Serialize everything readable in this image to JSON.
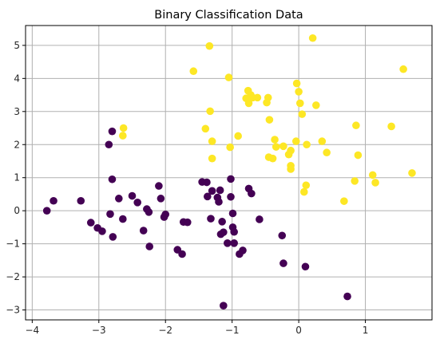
{
  "chart_data": {
    "type": "scatter",
    "title": "Binary Classification Data",
    "xlabel": "",
    "ylabel": "",
    "xlim": [
      -4.1,
      2.0
    ],
    "ylim": [
      -3.3,
      5.6
    ],
    "xticks": [
      -4,
      -3,
      -2,
      -1,
      0,
      1
    ],
    "yticks": [
      -3,
      -2,
      -1,
      0,
      1,
      2,
      3,
      4,
      5
    ],
    "xtick_labels": [
      "−4",
      "−3",
      "−2",
      "−1",
      "0",
      "1"
    ],
    "ytick_labels": [
      "−3",
      "−2",
      "−1",
      "0",
      "1",
      "2",
      "3",
      "4",
      "5"
    ],
    "grid": true,
    "legend": null,
    "colors": {
      "class_0": "#440154",
      "class_1": "#fde725"
    },
    "series": [
      {
        "class": 0,
        "color": "#440154",
        "points": [
          [
            -3.78,
            0.0
          ],
          [
            -3.68,
            0.3
          ],
          [
            -3.27,
            0.3
          ],
          [
            -3.12,
            -0.36
          ],
          [
            -3.02,
            -0.52
          ],
          [
            -2.95,
            -0.62
          ],
          [
            -2.85,
            2.0
          ],
          [
            -2.83,
            -0.1
          ],
          [
            -2.8,
            2.4
          ],
          [
            -2.8,
            0.95
          ],
          [
            -2.79,
            -0.79
          ],
          [
            -2.7,
            0.37
          ],
          [
            -2.64,
            -0.25
          ],
          [
            -2.5,
            0.45
          ],
          [
            -2.42,
            0.25
          ],
          [
            -2.33,
            -0.6
          ],
          [
            -2.28,
            0.05
          ],
          [
            -2.25,
            -0.04
          ],
          [
            -2.24,
            -1.08
          ],
          [
            -2.1,
            0.75
          ],
          [
            -2.07,
            0.37
          ],
          [
            -2.02,
            -0.19
          ],
          [
            -2.0,
            -0.11
          ],
          [
            -1.82,
            -1.18
          ],
          [
            -1.75,
            -1.31
          ],
          [
            -1.73,
            -0.34
          ],
          [
            -1.67,
            -0.35
          ],
          [
            -1.45,
            0.87
          ],
          [
            -1.38,
            0.86
          ],
          [
            -1.37,
            0.43
          ],
          [
            -1.32,
            -0.24
          ],
          [
            -1.3,
            0.6
          ],
          [
            -1.22,
            0.4
          ],
          [
            -1.2,
            0.27
          ],
          [
            -1.18,
            0.62
          ],
          [
            -1.17,
            -0.71
          ],
          [
            -1.15,
            -0.33
          ],
          [
            -1.13,
            -0.65
          ],
          [
            -1.13,
            -2.87
          ],
          [
            -1.07,
            -0.98
          ],
          [
            -1.02,
            0.96
          ],
          [
            -1.02,
            0.42
          ],
          [
            -0.99,
            -0.08
          ],
          [
            -0.99,
            -0.5
          ],
          [
            -0.97,
            -0.64
          ],
          [
            -0.97,
            -0.98
          ],
          [
            -0.89,
            -1.31
          ],
          [
            -0.84,
            -1.2
          ],
          [
            -0.75,
            0.67
          ],
          [
            -0.71,
            0.52
          ],
          [
            -0.59,
            -0.26
          ],
          [
            -0.25,
            -0.75
          ],
          [
            -0.23,
            -1.59
          ],
          [
            0.1,
            -1.69
          ],
          [
            0.73,
            -2.59
          ]
        ]
      },
      {
        "class": 1,
        "color": "#fde725",
        "points": [
          [
            -2.63,
            2.5
          ],
          [
            -2.64,
            2.27
          ],
          [
            -1.58,
            4.22
          ],
          [
            -1.4,
            2.48
          ],
          [
            -1.34,
            4.98
          ],
          [
            -1.33,
            3.01
          ],
          [
            -1.3,
            2.1
          ],
          [
            -1.3,
            1.58
          ],
          [
            -1.05,
            4.03
          ],
          [
            -1.03,
            1.92
          ],
          [
            -0.91,
            2.26
          ],
          [
            -0.79,
            3.4
          ],
          [
            -0.76,
            3.63
          ],
          [
            -0.75,
            3.25
          ],
          [
            -0.72,
            3.5
          ],
          [
            -0.69,
            3.42
          ],
          [
            -0.62,
            3.42
          ],
          [
            -0.48,
            3.27
          ],
          [
            -0.46,
            3.42
          ],
          [
            -0.44,
            2.75
          ],
          [
            -0.45,
            1.62
          ],
          [
            -0.39,
            1.58
          ],
          [
            -0.36,
            2.15
          ],
          [
            -0.34,
            1.93
          ],
          [
            -0.23,
            1.95
          ],
          [
            -0.15,
            1.7
          ],
          [
            -0.12,
            1.82
          ],
          [
            -0.12,
            1.36
          ],
          [
            -0.12,
            1.26
          ],
          [
            -0.04,
            2.1
          ],
          [
            -0.03,
            3.85
          ],
          [
            0.0,
            3.6
          ],
          [
            0.02,
            3.25
          ],
          [
            0.05,
            2.92
          ],
          [
            0.08,
            0.57
          ],
          [
            0.11,
            0.77
          ],
          [
            0.12,
            2.0
          ],
          [
            0.21,
            5.22
          ],
          [
            0.26,
            3.19
          ],
          [
            0.35,
            2.1
          ],
          [
            0.42,
            1.76
          ],
          [
            0.68,
            0.29
          ],
          [
            0.84,
            0.9
          ],
          [
            0.86,
            2.58
          ],
          [
            0.89,
            1.68
          ],
          [
            1.11,
            1.08
          ],
          [
            1.15,
            0.85
          ],
          [
            1.39,
            2.55
          ],
          [
            1.57,
            4.28
          ],
          [
            1.7,
            1.14
          ]
        ]
      }
    ]
  }
}
